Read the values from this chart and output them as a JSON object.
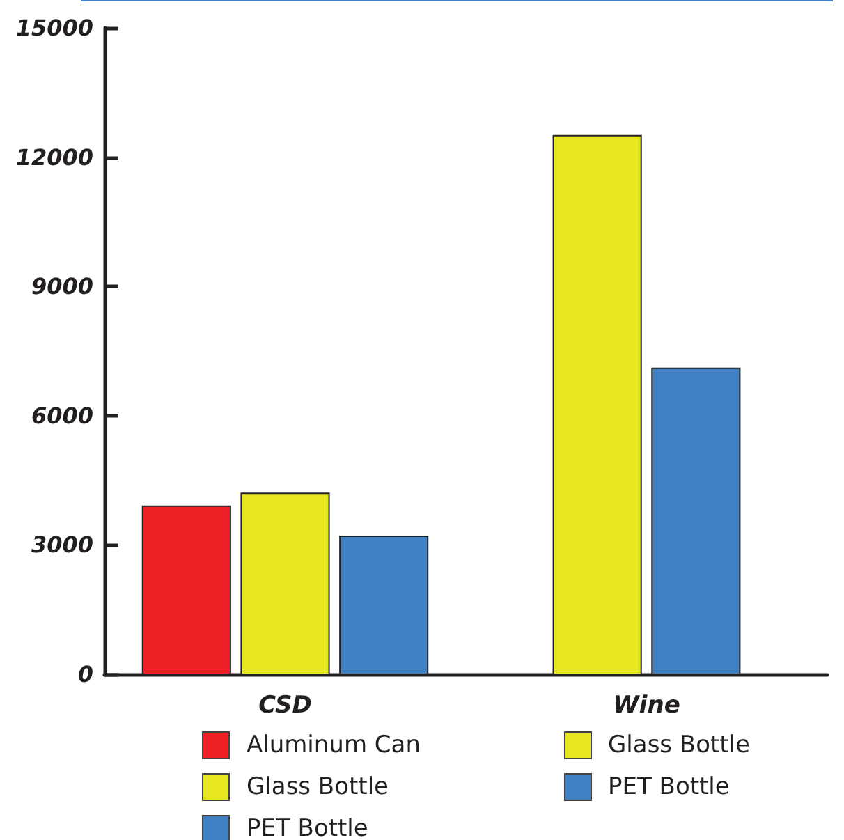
{
  "chart_data": {
    "type": "bar",
    "categories": [
      "CSD",
      "Wine"
    ],
    "series": [
      {
        "name": "Aluminum Can",
        "color": "#ee1f25",
        "values": [
          3900,
          null
        ]
      },
      {
        "name": "Glass Bottle",
        "color": "#e6e621",
        "values": [
          4200,
          null
        ]
      },
      {
        "name": "PET Bottle",
        "color": "#4280c4",
        "values": [
          3200,
          null
        ]
      },
      {
        "name": "Glass Bottle",
        "color": "#e6e621",
        "values": [
          null,
          12500
        ]
      },
      {
        "name": "PET Bottle",
        "color": "#4280c4",
        "values": [
          null,
          7100
        ]
      }
    ],
    "ylim": [
      0,
      15000
    ],
    "yticks": [
      0,
      3000,
      6000,
      9000,
      12000,
      15000
    ],
    "grid": false,
    "legend": "bottom"
  }
}
